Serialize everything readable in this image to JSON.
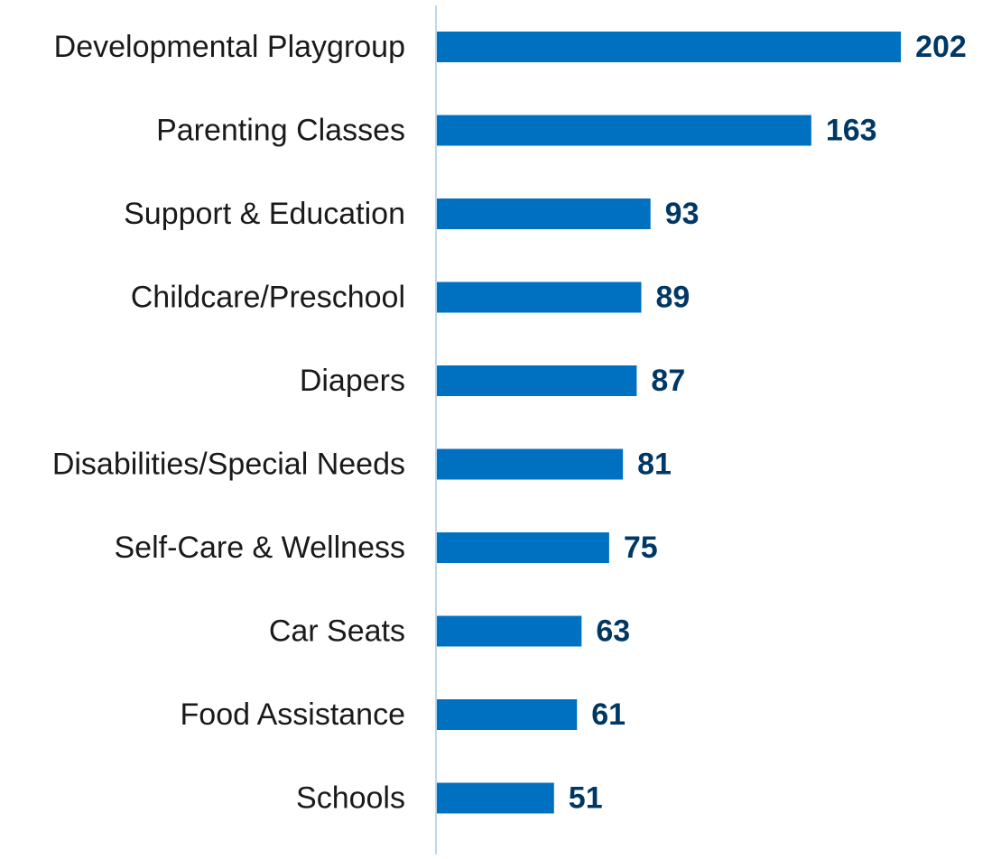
{
  "chart_data": {
    "type": "bar",
    "orientation": "horizontal",
    "categories": [
      "Developmental Playgroup",
      "Parenting Classes",
      "Support & Education",
      "Childcare/Preschool",
      "Diapers",
      "Disabilities/Special Needs",
      "Self-Care & Wellness",
      "Car Seats",
      "Food Assistance",
      "Schools"
    ],
    "values": [
      202,
      163,
      93,
      89,
      87,
      81,
      75,
      63,
      61,
      51
    ],
    "value_labels": [
      "202",
      "163",
      "93",
      "89",
      "87",
      "81",
      "75",
      "63",
      "61",
      "51"
    ],
    "title": "",
    "xlabel": "",
    "ylabel": "",
    "grid": false,
    "legend": "none",
    "colors": {
      "bar": "#0070c0",
      "value_label": "#003865",
      "axis_line": "#bdd7ee",
      "category_label": "#1a1a1a"
    }
  }
}
